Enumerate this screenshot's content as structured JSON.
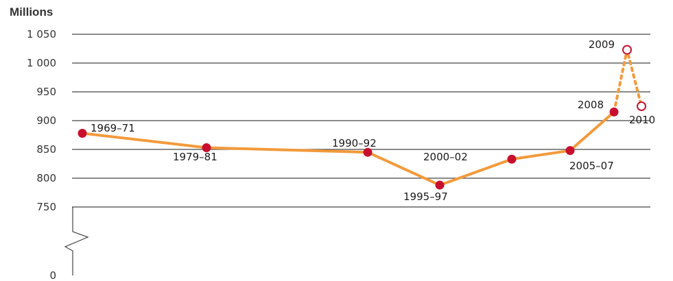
{
  "chart_data": {
    "type": "line",
    "ylabel": "Millions",
    "yticks": [
      "1 050",
      "1 000",
      "950",
      "900",
      "850",
      "800",
      "750",
      "0"
    ],
    "ylim": [
      750,
      1050
    ],
    "axis_break": true,
    "grid": true,
    "series": [
      {
        "points": [
          {
            "x": "1969–71",
            "y": 878
          },
          {
            "x": "1979–81",
            "y": 853
          },
          {
            "x": "1990–92",
            "y": 845
          },
          {
            "x": "1995–97",
            "y": 788
          },
          {
            "x": "2000–02",
            "y": 833
          },
          {
            "x": "2005–07",
            "y": 848
          },
          {
            "x": "2008",
            "y": 915
          }
        ]
      },
      {
        "style": "dotted",
        "points": [
          {
            "x": "2008",
            "y": 915
          },
          {
            "x": "2009",
            "y": 1023
          },
          {
            "x": "2010",
            "y": 925
          }
        ]
      }
    ],
    "colors": {
      "line": "#F39A3B",
      "marker": "#C8102E",
      "grid": "#444444"
    }
  }
}
